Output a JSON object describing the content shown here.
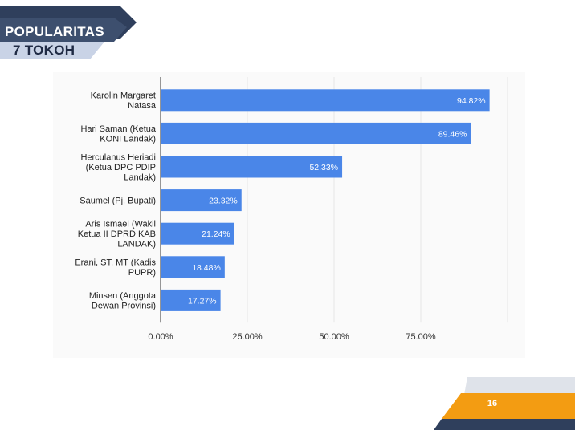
{
  "header": {
    "title": "POPULARITAS",
    "subtitle": "7 TOKOH"
  },
  "page_number": "16",
  "colors": {
    "bar": "#4a86e8",
    "banner_dark": "#3d4f6e",
    "banner_light": "#c9d3e6",
    "footer_orange": "#f39c12",
    "footer_light": "#dfe3ea"
  },
  "chart_data": {
    "type": "bar",
    "orientation": "horizontal",
    "categories": [
      [
        "Karolin Margaret",
        "Natasa"
      ],
      [
        "Hari Saman (Ketua",
        "KONI Landak)"
      ],
      [
        "Herculanus Heriadi",
        "(Ketua DPC PDIP",
        "Landak)"
      ],
      [
        "Saumel (Pj. Bupati)"
      ],
      [
        "Aris Ismael (Wakil",
        "Ketua II DPRD KAB",
        "LANDAK)"
      ],
      [
        "Erani, ST, MT (Kadis",
        "PUPR)"
      ],
      [
        "Minsen (Anggota",
        "Dewan Provinsi)"
      ]
    ],
    "values": [
      94.82,
      89.46,
      52.33,
      23.32,
      21.24,
      18.48,
      17.27
    ],
    "data_labels": [
      "94.82%",
      "89.46%",
      "52.33%",
      "23.32%",
      "21.24%",
      "18.48%",
      "17.27%"
    ],
    "x_ticks": [
      0,
      25,
      50,
      75
    ],
    "x_tick_labels": [
      "0.00%",
      "25.00%",
      "50.00%",
      "75.00%"
    ],
    "xlim": [
      0,
      100
    ],
    "grid": true,
    "title": "",
    "xlabel": "",
    "ylabel": ""
  }
}
